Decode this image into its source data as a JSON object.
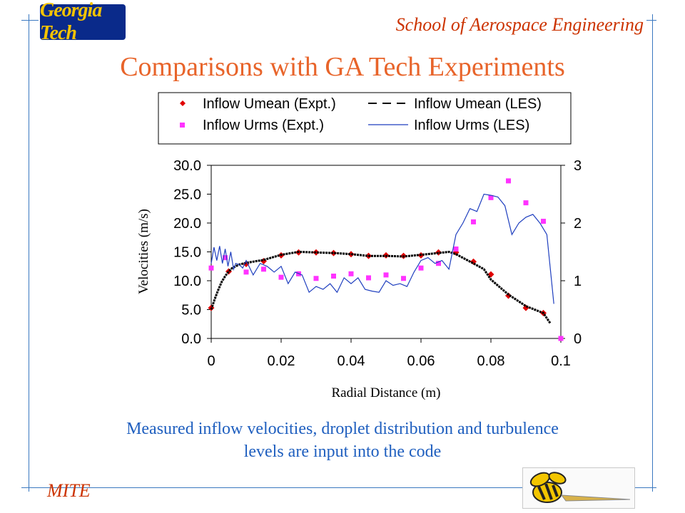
{
  "header": {
    "logo_text": "Georgia Tech",
    "school": "School of Aerospace Engineering",
    "title": "Comparisons with GA Tech Experiments"
  },
  "footer": {
    "caption_line1": "Measured inflow velocities, droplet distribution and turbulence",
    "caption_line2": "levels are input into the code",
    "mite": "MITE",
    "mascot_icon": "yellow-jacket-mascot-icon"
  },
  "chart_data": {
    "type": "line",
    "xlabel": "Radial Distance (m)",
    "ylabel": "Velocities (m/s)",
    "xlim": [
      0,
      0.1
    ],
    "ylim": [
      0,
      30
    ],
    "y2lim": [
      0,
      3
    ],
    "x_ticks": [
      "0",
      "0.02",
      "0.04",
      "0.06",
      "0.08",
      "0.1"
    ],
    "y_ticks": [
      "0.0",
      "5.0",
      "10.0",
      "15.0",
      "20.0",
      "25.0",
      "30.0"
    ],
    "y2_ticks": [
      "0",
      "1",
      "2",
      "3"
    ],
    "grid": false,
    "legend_position": "top",
    "series": [
      {
        "name": "Inflow Umean (Expt.)",
        "kind": "scatter",
        "marker": "diamond",
        "color": "#e00000",
        "axis": "left",
        "x": [
          0.0,
          0.005,
          0.01,
          0.015,
          0.02,
          0.025,
          0.03,
          0.035,
          0.04,
          0.045,
          0.05,
          0.055,
          0.06,
          0.065,
          0.07,
          0.075,
          0.08,
          0.085,
          0.09,
          0.095
        ],
        "y": [
          5.3,
          11.6,
          12.9,
          13.4,
          14.4,
          14.9,
          14.9,
          14.8,
          14.6,
          14.3,
          14.4,
          14.3,
          14.4,
          14.9,
          14.9,
          13.3,
          11.1,
          7.4,
          5.3,
          4.4
        ]
      },
      {
        "name": "Inflow Umean (LES)",
        "kind": "line",
        "style": "dashed",
        "color": "#000000",
        "axis": "left",
        "x": [
          0.0,
          0.001,
          0.002,
          0.003,
          0.004,
          0.005,
          0.006,
          0.008,
          0.01,
          0.015,
          0.02,
          0.025,
          0.03,
          0.035,
          0.04,
          0.045,
          0.05,
          0.055,
          0.06,
          0.065,
          0.068,
          0.07,
          0.075,
          0.078,
          0.08,
          0.085,
          0.09,
          0.095,
          0.097
        ],
        "y": [
          5.0,
          6.8,
          8.4,
          9.8,
          10.8,
          11.6,
          12.2,
          12.8,
          13.1,
          13.6,
          14.5,
          15.0,
          14.9,
          14.8,
          14.6,
          14.3,
          14.3,
          14.2,
          14.5,
          14.8,
          15.0,
          14.6,
          13.0,
          12.0,
          10.2,
          7.6,
          5.6,
          4.4,
          2.6
        ]
      },
      {
        "name": "Inflow Urms (Expt.)",
        "kind": "scatter",
        "marker": "square",
        "color": "#ff33ff",
        "axis": "right",
        "x": [
          0.0,
          0.004,
          0.01,
          0.015,
          0.02,
          0.025,
          0.03,
          0.035,
          0.04,
          0.045,
          0.05,
          0.055,
          0.06,
          0.065,
          0.07,
          0.075,
          0.08,
          0.085,
          0.09,
          0.095,
          0.1
        ],
        "y": [
          1.22,
          1.4,
          1.15,
          1.2,
          1.06,
          1.12,
          1.04,
          1.08,
          1.12,
          1.05,
          1.1,
          1.04,
          1.22,
          1.3,
          1.55,
          2.02,
          2.44,
          2.73,
          2.35,
          2.03,
          0.0
        ]
      },
      {
        "name": "Inflow Urms (LES)",
        "kind": "line",
        "style": "solid",
        "color": "#1f3fbf",
        "axis": "right",
        "x": [
          0.0,
          0.0008,
          0.0016,
          0.0024,
          0.0032,
          0.004,
          0.0048,
          0.0056,
          0.0064,
          0.007,
          0.008,
          0.009,
          0.01,
          0.012,
          0.014,
          0.016,
          0.018,
          0.02,
          0.022,
          0.024,
          0.026,
          0.028,
          0.03,
          0.032,
          0.034,
          0.036,
          0.038,
          0.04,
          0.042,
          0.044,
          0.046,
          0.048,
          0.05,
          0.052,
          0.054,
          0.056,
          0.058,
          0.06,
          0.062,
          0.064,
          0.066,
          0.068,
          0.07,
          0.072,
          0.074,
          0.076,
          0.078,
          0.08,
          0.082,
          0.084,
          0.086,
          0.088,
          0.09,
          0.092,
          0.094,
          0.096,
          0.098
        ],
        "y": [
          1.3,
          1.58,
          1.35,
          1.6,
          1.3,
          1.55,
          1.25,
          1.5,
          1.2,
          1.3,
          1.28,
          1.22,
          1.35,
          1.1,
          1.3,
          1.25,
          1.15,
          1.25,
          0.95,
          1.15,
          1.1,
          0.8,
          0.9,
          0.85,
          0.95,
          0.8,
          1.05,
          0.95,
          1.05,
          0.85,
          0.82,
          0.8,
          1.0,
          0.92,
          0.95,
          0.9,
          1.15,
          1.35,
          1.4,
          1.3,
          1.35,
          1.2,
          1.8,
          2.0,
          2.25,
          2.2,
          2.5,
          2.48,
          2.45,
          2.3,
          1.8,
          2.0,
          2.1,
          2.15,
          2.0,
          1.8,
          0.6
        ]
      }
    ]
  }
}
